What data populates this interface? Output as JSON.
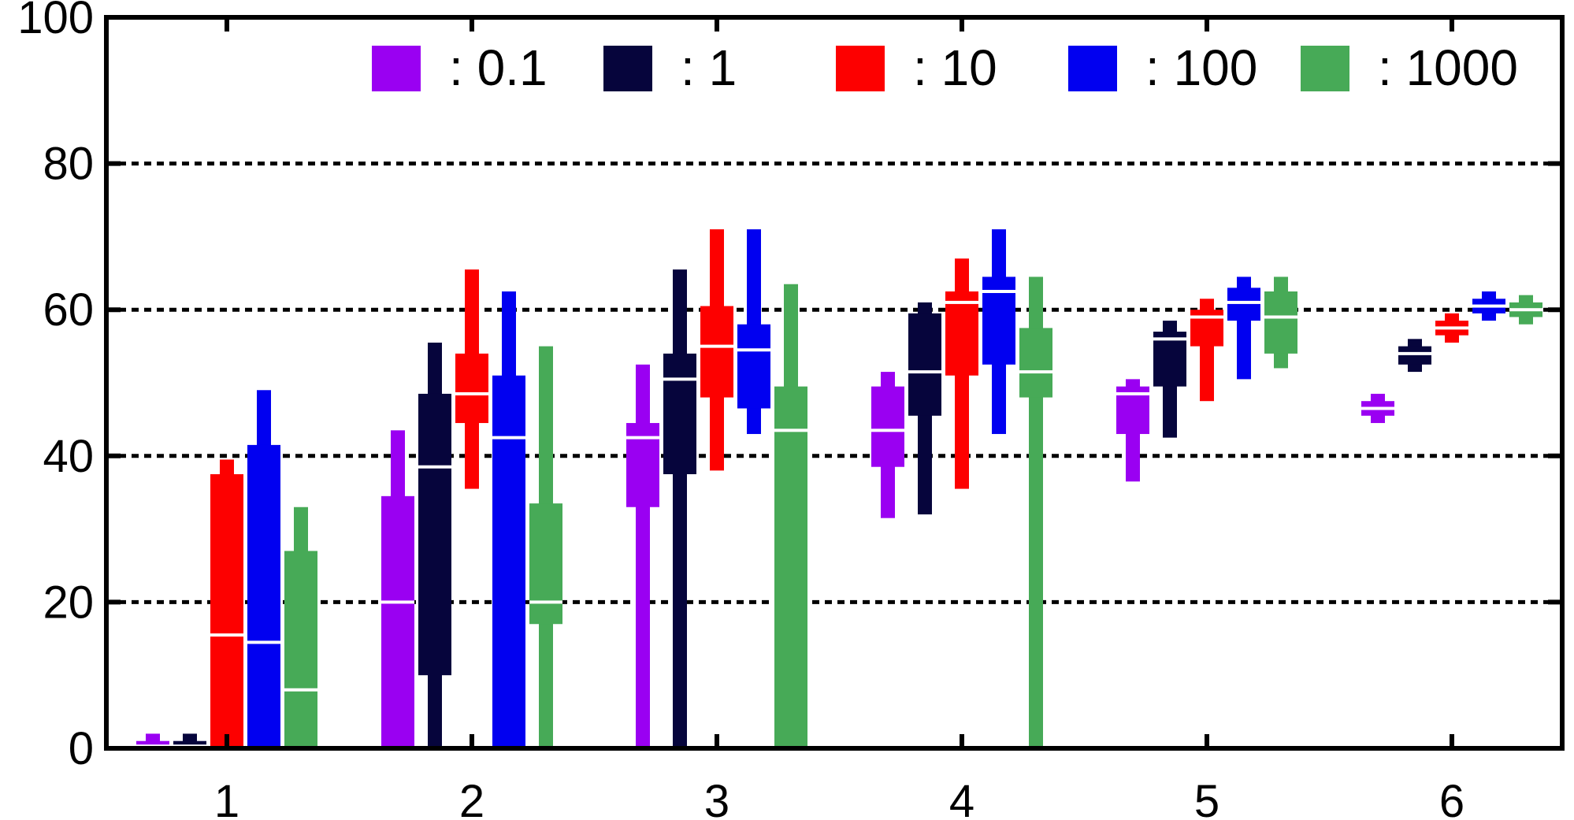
{
  "chart_data": {
    "type": "box",
    "categories": [
      "1",
      "2",
      "3",
      "4",
      "5",
      "6"
    ],
    "ylim": [
      0,
      100
    ],
    "yticks": [
      "0",
      "20",
      "40",
      "60",
      "80",
      "100"
    ],
    "grid": "horizontal dotted",
    "legend_position": "top",
    "series": [
      {
        "name": ": 0.1",
        "color": "#9a00f2",
        "boxes": [
          {
            "min": 0,
            "q1": 0,
            "median": 0.3,
            "q3": 1,
            "max": 2
          },
          {
            "min": 0,
            "q1": 0,
            "median": 20,
            "q3": 34.5,
            "max": 43.5
          },
          {
            "min": 0,
            "q1": 33,
            "median": 42.5,
            "q3": 44.5,
            "max": 52.5
          },
          {
            "min": 31.5,
            "q1": 38.5,
            "median": 43.5,
            "q3": 49.5,
            "max": 51.5
          },
          {
            "min": 36.5,
            "q1": 43,
            "median": 48.5,
            "q3": 49.5,
            "max": 50.5
          },
          {
            "min": 44.5,
            "q1": 45.5,
            "median": 46.5,
            "q3": 47.5,
            "max": 48.5
          }
        ]
      },
      {
        "name": ": 1",
        "color": "#06053c",
        "boxes": [
          {
            "min": 0,
            "q1": 0,
            "median": 0.3,
            "q3": 1,
            "max": 2
          },
          {
            "min": 0,
            "q1": 10,
            "median": 38.5,
            "q3": 48.5,
            "max": 55.5
          },
          {
            "min": 0,
            "q1": 37.5,
            "median": 50.5,
            "q3": 54,
            "max": 65.5
          },
          {
            "min": 32,
            "q1": 45.5,
            "median": 51.5,
            "q3": 59.5,
            "max": 61
          },
          {
            "min": 42.5,
            "q1": 49.5,
            "median": 56,
            "q3": 57,
            "max": 58.5
          },
          {
            "min": 51.5,
            "q1": 52.5,
            "median": 54,
            "q3": 55,
            "max": 56
          }
        ]
      },
      {
        "name": ": 10",
        "color": "#fd0000",
        "boxes": [
          {
            "min": 0,
            "q1": 0,
            "median": 15.5,
            "q3": 37.5,
            "max": 39.5
          },
          {
            "min": 35.5,
            "q1": 44.5,
            "median": 48.5,
            "q3": 54,
            "max": 65.5
          },
          {
            "min": 38,
            "q1": 48,
            "median": 55,
            "q3": 60.5,
            "max": 71
          },
          {
            "min": 35.5,
            "q1": 51,
            "median": 61,
            "q3": 62.5,
            "max": 67
          },
          {
            "min": 47.5,
            "q1": 55,
            "median": 59,
            "q3": 60,
            "max": 61.5
          },
          {
            "min": 55.5,
            "q1": 56.5,
            "median": 57.5,
            "q3": 58.5,
            "max": 59.5
          }
        ]
      },
      {
        "name": ": 100",
        "color": "#0100f0",
        "boxes": [
          {
            "min": 0,
            "q1": 0,
            "median": 14.5,
            "q3": 41.5,
            "max": 49
          },
          {
            "min": 0,
            "q1": 0,
            "median": 42.5,
            "q3": 51,
            "max": 62.5
          },
          {
            "min": 43,
            "q1": 46.5,
            "median": 54.5,
            "q3": 58,
            "max": 71
          },
          {
            "min": 43,
            "q1": 52.5,
            "median": 62.5,
            "q3": 64.5,
            "max": 71
          },
          {
            "min": 50.5,
            "q1": 58.5,
            "median": 61,
            "q3": 63,
            "max": 64.5
          },
          {
            "min": 58.5,
            "q1": 59.5,
            "median": 60.5,
            "q3": 61.5,
            "max": 62.5
          }
        ]
      },
      {
        "name": ": 1000",
        "color": "#47aa57",
        "boxes": [
          {
            "min": 0,
            "q1": 0,
            "median": 8,
            "q3": 27,
            "max": 33
          },
          {
            "min": 0,
            "q1": 17,
            "median": 20,
            "q3": 33.5,
            "max": 55
          },
          {
            "min": 0,
            "q1": 0,
            "median": 43.5,
            "q3": 49.5,
            "max": 63.5
          },
          {
            "min": 0,
            "q1": 48,
            "median": 51.5,
            "q3": 57.5,
            "max": 64.5
          },
          {
            "min": 52,
            "q1": 54,
            "median": 59,
            "q3": 62.5,
            "max": 64.5
          },
          {
            "min": 58,
            "q1": 59,
            "median": 60,
            "q3": 61,
            "max": 62
          }
        ]
      }
    ]
  }
}
